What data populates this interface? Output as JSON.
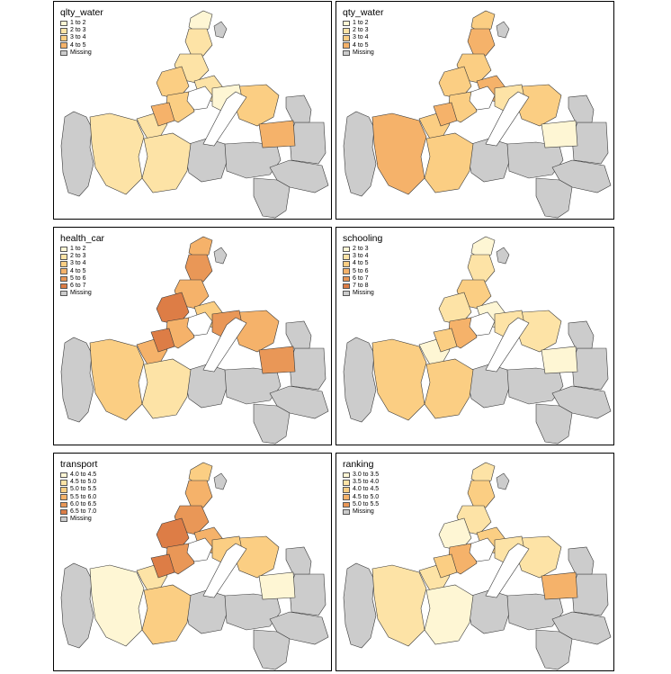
{
  "colors": {
    "missing": "#cccccc",
    "outline": "#3a3a3a",
    "scale": [
      "#fef6d4",
      "#fde3a6",
      "#fbce83",
      "#f5b26a",
      "#e99757",
      "#dd7d46",
      "#c9673a"
    ]
  },
  "panels": [
    {
      "title": "qlty_water",
      "legend": [
        "1 to 2",
        "2 to 3",
        "3 to 4",
        "4 to 5",
        "Missing"
      ],
      "classes": 4,
      "regions": {
        "west": 1,
        "central": 1,
        "south": 1,
        "north_urban": 1,
        "east": 2,
        "east_square": 3,
        "strip": 1
      },
      "urban_mix": [
        0,
        1,
        1,
        2,
        1,
        0,
        2,
        3
      ]
    },
    {
      "title": "qty_water",
      "legend": [
        "1 to 2",
        "2 to 3",
        "3 to 4",
        "4 to 5",
        "Missing"
      ],
      "classes": 4,
      "regions": {
        "west": 3,
        "central": 2,
        "south": 2,
        "north_urban": 2,
        "east": 2,
        "east_square": 0,
        "strip": 2
      },
      "urban_mix": [
        2,
        3,
        2,
        2,
        3,
        1,
        2,
        3
      ]
    },
    {
      "title": "health_car",
      "legend": [
        "1 to 2",
        "2 to 3",
        "3 to 4",
        "4 to 5",
        "5 to 6",
        "6 to 7",
        "Missing"
      ],
      "classes": 6,
      "regions": {
        "west": 2,
        "central": 3,
        "south": 1,
        "north_urban": 3,
        "east": 3,
        "east_square": 4,
        "strip": 3
      },
      "urban_mix": [
        3,
        4,
        3,
        5,
        2,
        4,
        3,
        5
      ]
    },
    {
      "title": "schooling",
      "legend": [
        "2 to 3",
        "3 to 4",
        "4 to 5",
        "5 to 6",
        "6 to 7",
        "7 to 8",
        "Missing"
      ],
      "classes": 6,
      "regions": {
        "west": 2,
        "central": 0,
        "south": 2,
        "north_urban": 1,
        "east": 1,
        "east_square": 0,
        "strip": 1
      },
      "urban_mix": [
        0,
        1,
        2,
        1,
        0,
        1,
        3,
        2
      ]
    },
    {
      "title": "transport",
      "legend": [
        "4.0 to 4.5",
        "4.5 to 5.0",
        "5.0 to 5.5",
        "5.5 to 6.0",
        "6.0 to 6.5",
        "6.5 to 7.0",
        "Missing"
      ],
      "classes": 6,
      "regions": {
        "west": 0,
        "central": 1,
        "south": 2,
        "north_urban": 2,
        "east": 2,
        "east_square": 0,
        "strip": 1
      },
      "urban_mix": [
        2,
        3,
        4,
        5,
        3,
        2,
        4,
        5
      ]
    },
    {
      "title": "ranking",
      "legend": [
        "3.0 to 3.5",
        "3.5 to 4.0",
        "4.0 to 4.5",
        "4.5 to 5.0",
        "5.0 to 5.5",
        "Missing"
      ],
      "classes": 5,
      "regions": {
        "west": 1,
        "central": 1,
        "south": 0,
        "north_urban": 1,
        "east": 1,
        "east_square": 3,
        "strip": 1
      },
      "urban_mix": [
        1,
        2,
        1,
        0,
        2,
        1,
        3,
        2
      ]
    }
  ]
}
